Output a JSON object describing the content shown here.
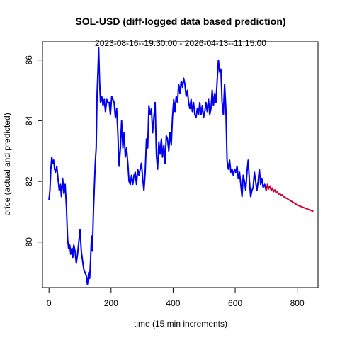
{
  "chart_data": {
    "type": "line",
    "title": "SOL-USD (diff-logged data based prediction)",
    "subtitle": "2023-08-16--19:30:00  -  2026-04-13--11:15:00",
    "xlabel": "time (15 min increments)",
    "ylabel": "price (actual and predicted)",
    "xlim": [
      -21,
      867
    ],
    "ylim": [
      78.5,
      86.6
    ],
    "x_ticks": [
      0,
      200,
      400,
      600,
      800
    ],
    "y_ticks": [
      80,
      82,
      84,
      86
    ],
    "grid": false,
    "legend": "none",
    "series": [
      {
        "color": "#0000EE",
        "points": [
          [
            0,
            81.4
          ],
          [
            3,
            81.7
          ],
          [
            6,
            82.4
          ],
          [
            9,
            82.8
          ],
          [
            12,
            82.6
          ],
          [
            15,
            82.7
          ],
          [
            18,
            82.4
          ],
          [
            21,
            82.3
          ],
          [
            25,
            82.5
          ],
          [
            29,
            82.1
          ],
          [
            33,
            81.7
          ],
          [
            37,
            81.9
          ],
          [
            40,
            81.5
          ],
          [
            44,
            82.1
          ],
          [
            48,
            81.6
          ],
          [
            52,
            81.9
          ],
          [
            56,
            81.2
          ],
          [
            60,
            80.1
          ],
          [
            63,
            79.8
          ],
          [
            67,
            79.9
          ],
          [
            70,
            79.6
          ],
          [
            74,
            79.8
          ],
          [
            77,
            79.5
          ],
          [
            80,
            79.9
          ],
          [
            84,
            79.7
          ],
          [
            88,
            79.3
          ],
          [
            92,
            79.6
          ],
          [
            96,
            80.0
          ],
          [
            100,
            80.4
          ],
          [
            104,
            79.7
          ],
          [
            108,
            79.4
          ],
          [
            112,
            79.1
          ],
          [
            116,
            79.0
          ],
          [
            120,
            78.9
          ],
          [
            124,
            78.6
          ],
          [
            128,
            79.0
          ],
          [
            131,
            78.8
          ],
          [
            134,
            79.4
          ],
          [
            137,
            80.2
          ],
          [
            140,
            79.7
          ],
          [
            143,
            80.9
          ],
          [
            146,
            81.8
          ],
          [
            149,
            82.6
          ],
          [
            152,
            83.1
          ],
          [
            155,
            84.9
          ],
          [
            158,
            85.7
          ],
          [
            160,
            86.4
          ],
          [
            163,
            85.3
          ],
          [
            166,
            84.6
          ],
          [
            170,
            84.8
          ],
          [
            174,
            84.5
          ],
          [
            178,
            84.7
          ],
          [
            182,
            84.3
          ],
          [
            186,
            84.7
          ],
          [
            190,
            84.6
          ],
          [
            194,
            84.6
          ],
          [
            198,
            84.2
          ],
          [
            202,
            84.8
          ],
          [
            206,
            84.7
          ],
          [
            210,
            84.6
          ],
          [
            214,
            84.1
          ],
          [
            218,
            84.4
          ],
          [
            222,
            83.6
          ],
          [
            226,
            82.5
          ],
          [
            230,
            83.1
          ],
          [
            234,
            84.0
          ],
          [
            238,
            83.1
          ],
          [
            242,
            83.6
          ],
          [
            246,
            82.8
          ],
          [
            250,
            83.1
          ],
          [
            254,
            82.6
          ],
          [
            258,
            82.0
          ],
          [
            262,
            81.9
          ],
          [
            266,
            82.2
          ],
          [
            270,
            81.9
          ],
          [
            274,
            82.2
          ],
          [
            278,
            82.3
          ],
          [
            282,
            81.9
          ],
          [
            286,
            82.4
          ],
          [
            290,
            82.2
          ],
          [
            294,
            82.4
          ],
          [
            298,
            82.6
          ],
          [
            302,
            82.1
          ],
          [
            306,
            81.7
          ],
          [
            310,
            82.3
          ],
          [
            314,
            83.4
          ],
          [
            318,
            83.1
          ],
          [
            322,
            84.5
          ],
          [
            326,
            84.2
          ],
          [
            330,
            84.4
          ],
          [
            334,
            83.6
          ],
          [
            338,
            84.1
          ],
          [
            342,
            84.6
          ],
          [
            346,
            82.9
          ],
          [
            350,
            82.4
          ],
          [
            354,
            83.3
          ],
          [
            358,
            82.9
          ],
          [
            362,
            83.4
          ],
          [
            366,
            82.8
          ],
          [
            370,
            83.2
          ],
          [
            374,
            82.6
          ],
          [
            378,
            83.5
          ],
          [
            382,
            83.4
          ],
          [
            386,
            83.0
          ],
          [
            390,
            83.6
          ],
          [
            394,
            83.2
          ],
          [
            398,
            84.1
          ],
          [
            402,
            84.7
          ],
          [
            406,
            84.3
          ],
          [
            410,
            84.8
          ],
          [
            414,
            84.6
          ],
          [
            418,
            85.2
          ],
          [
            422,
            84.9
          ],
          [
            426,
            85.3
          ],
          [
            430,
            85.1
          ],
          [
            434,
            85.4
          ],
          [
            438,
            85.2
          ],
          [
            442,
            84.8
          ],
          [
            446,
            85.0
          ],
          [
            450,
            84.6
          ],
          [
            454,
            84.4
          ],
          [
            458,
            84.7
          ],
          [
            462,
            84.3
          ],
          [
            466,
            84.6
          ],
          [
            470,
            84.2
          ],
          [
            474,
            84.1
          ],
          [
            478,
            84.4
          ],
          [
            482,
            84.2
          ],
          [
            486,
            84.6
          ],
          [
            490,
            84.2
          ],
          [
            494,
            84.5
          ],
          [
            498,
            84.1
          ],
          [
            502,
            84.3
          ],
          [
            506,
            84.6
          ],
          [
            510,
            84.3
          ],
          [
            514,
            84.7
          ],
          [
            518,
            84.2
          ],
          [
            522,
            84.4
          ],
          [
            526,
            85.0
          ],
          [
            530,
            84.5
          ],
          [
            534,
            84.9
          ],
          [
            538,
            84.6
          ],
          [
            542,
            85.3
          ],
          [
            546,
            86.0
          ],
          [
            550,
            85.6
          ],
          [
            554,
            85.7
          ],
          [
            558,
            84.6
          ],
          [
            562,
            84.2
          ],
          [
            566,
            85.2
          ],
          [
            570,
            84.4
          ],
          [
            574,
            82.7
          ],
          [
            578,
            82.4
          ],
          [
            582,
            82.7
          ],
          [
            586,
            82.3
          ],
          [
            590,
            82.4
          ],
          [
            594,
            82.2
          ],
          [
            598,
            82.4
          ],
          [
            602,
            82.3
          ],
          [
            606,
            82.5
          ],
          [
            610,
            82.1
          ],
          [
            614,
            82.3
          ],
          [
            618,
            81.9
          ],
          [
            622,
            81.5
          ],
          [
            626,
            82.2
          ],
          [
            630,
            82.0
          ],
          [
            634,
            81.7
          ],
          [
            638,
            82.3
          ],
          [
            642,
            82.7
          ],
          [
            646,
            82.0
          ],
          [
            650,
            81.5
          ],
          [
            654,
            81.7
          ],
          [
            658,
            81.8
          ],
          [
            662,
            82.3
          ],
          [
            666,
            82.0
          ],
          [
            670,
            81.7
          ],
          [
            674,
            82.0
          ],
          [
            678,
            82.4
          ],
          [
            682,
            81.9
          ],
          [
            686,
            82.1
          ],
          [
            690,
            81.8
          ],
          [
            695,
            81.9
          ],
          [
            700,
            81.7
          ]
        ]
      },
      {
        "color": "#CD0033",
        "points": [
          [
            700,
            81.7
          ],
          [
            704,
            81.9
          ],
          [
            708,
            81.75
          ],
          [
            712,
            81.85
          ],
          [
            716,
            81.7
          ],
          [
            720,
            81.78
          ],
          [
            724,
            81.66
          ],
          [
            728,
            81.72
          ],
          [
            732,
            81.62
          ],
          [
            736,
            81.66
          ],
          [
            740,
            81.58
          ],
          [
            744,
            81.6
          ],
          [
            748,
            81.54
          ],
          [
            752,
            81.56
          ],
          [
            756,
            81.5
          ],
          [
            760,
            81.48
          ],
          [
            764,
            81.45
          ],
          [
            768,
            81.43
          ],
          [
            772,
            81.4
          ],
          [
            776,
            81.38
          ],
          [
            780,
            81.35
          ],
          [
            784,
            81.33
          ],
          [
            788,
            81.3
          ],
          [
            792,
            81.28
          ],
          [
            796,
            81.25
          ],
          [
            800,
            81.23
          ],
          [
            805,
            81.2
          ],
          [
            810,
            81.18
          ],
          [
            815,
            81.16
          ],
          [
            820,
            81.14
          ],
          [
            825,
            81.12
          ],
          [
            830,
            81.1
          ],
          [
            835,
            81.08
          ],
          [
            840,
            81.06
          ],
          [
            845,
            81.04
          ],
          [
            850,
            81.02
          ]
        ]
      }
    ]
  }
}
